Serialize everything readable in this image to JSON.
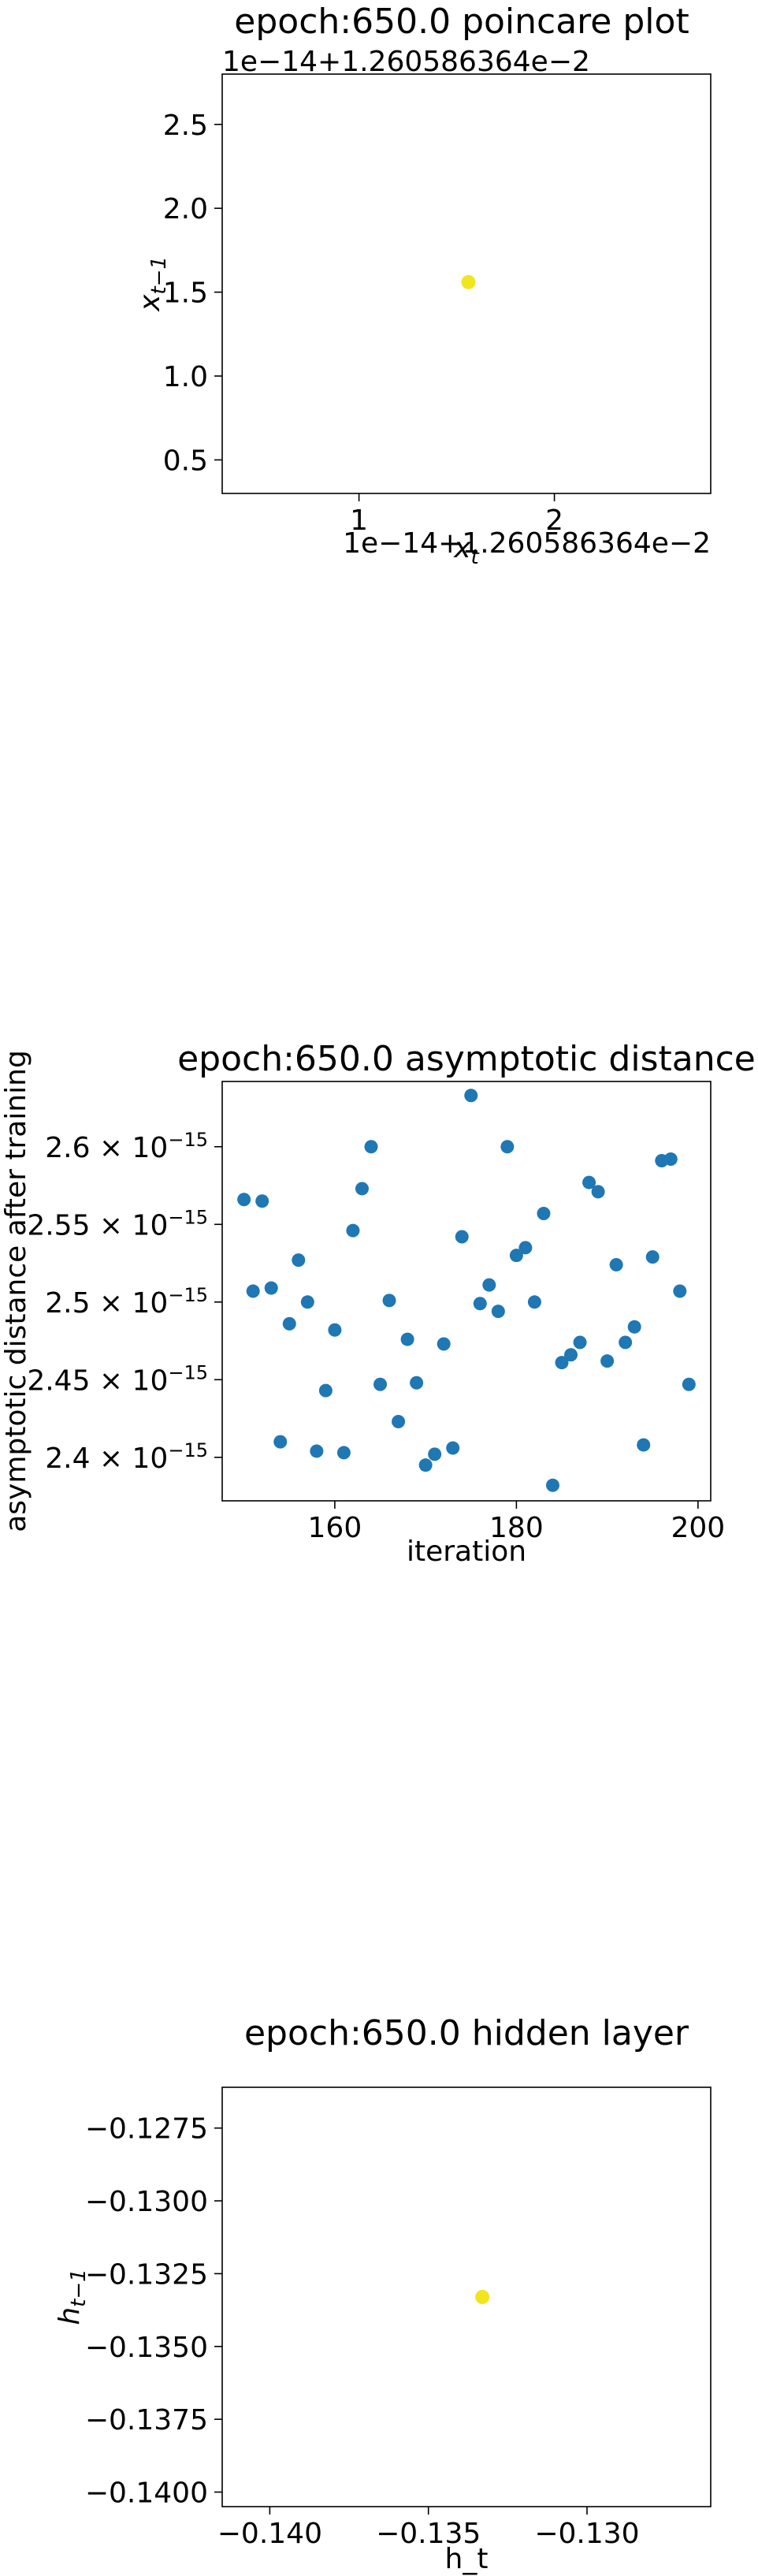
{
  "chart_data": [
    {
      "type": "scatter",
      "title": "epoch:650.0 poincare plot",
      "xlabel": "x_t",
      "ylabel": "x_{t-1}",
      "x_offset_label": "1e−14+1.260586364e−2",
      "y_offset_label": "1e−14+1.260586364e−2",
      "xlim": [
        0.3,
        2.8
      ],
      "ylim": [
        0.3,
        2.8
      ],
      "xticks": [
        1,
        2
      ],
      "xtick_labels": [
        "1",
        "2"
      ],
      "yticks": [
        0.5,
        1.0,
        1.5,
        2.0,
        2.5
      ],
      "ytick_labels": [
        "0.5",
        "1.0",
        "1.5",
        "2.0",
        "2.5"
      ],
      "points": [
        {
          "x": 1.56,
          "y": 1.56
        }
      ],
      "point_color": "#f1e51d",
      "grid": false
    },
    {
      "type": "scatter",
      "title": "epoch:650.0 asymptotic distance",
      "xlabel": "iteration",
      "ylabel": "asymptotic distance after training",
      "xlim": [
        147.6,
        201.4
      ],
      "ylim": [
        2.372,
        2.642
      ],
      "xticks": [
        160,
        180,
        200
      ],
      "xtick_labels": [
        "160",
        "180",
        "200"
      ],
      "yticks": [
        2.4,
        2.45,
        2.5,
        2.55,
        2.6
      ],
      "ytick_mantissas": [
        "2.4",
        "2.45",
        "2.5",
        "2.55",
        "2.6"
      ],
      "ytick_base": "10",
      "ytick_exponent": "−15",
      "point_color": "#1f77b4",
      "grid": false,
      "x": [
        150,
        151,
        152,
        153,
        154,
        155,
        156,
        157,
        158,
        159,
        160,
        161,
        162,
        163,
        164,
        165,
        166,
        167,
        168,
        169,
        170,
        171,
        172,
        173,
        174,
        175,
        176,
        177,
        178,
        179,
        180,
        181,
        182,
        183,
        184,
        185,
        186,
        187,
        188,
        189,
        190,
        191,
        192,
        193,
        194,
        195,
        196,
        197,
        198,
        199
      ],
      "y": [
        2.566,
        2.507,
        2.565,
        2.509,
        2.41,
        2.486,
        2.527,
        2.5,
        2.404,
        2.443,
        2.482,
        2.403,
        2.546,
        2.573,
        2.6,
        2.447,
        2.501,
        2.423,
        2.476,
        2.448,
        2.395,
        2.402,
        2.473,
        2.406,
        2.542,
        2.633,
        2.499,
        2.511,
        2.494,
        2.6,
        2.53,
        2.535,
        2.5,
        2.557,
        2.382,
        2.461,
        2.466,
        2.474,
        2.577,
        2.571,
        2.462,
        2.524,
        2.474,
        2.484,
        2.408,
        2.529,
        2.591,
        2.592,
        2.507,
        2.447
      ]
    },
    {
      "type": "scatter",
      "title": "epoch:650.0 hidden layer",
      "xlabel": "h_t",
      "ylabel": "h_{t-1}",
      "xlim": [
        -0.1415,
        -0.1261
      ],
      "ylim": [
        -0.1405,
        -0.1261
      ],
      "xticks": [
        -0.14,
        -0.135,
        -0.13
      ],
      "xtick_labels": [
        "−0.140",
        "−0.135",
        "−0.130"
      ],
      "yticks": [
        -0.14,
        -0.1375,
        -0.135,
        -0.1325,
        -0.13,
        -0.1275
      ],
      "ytick_labels": [
        "−0.1400",
        "−0.1375",
        "−0.1350",
        "−0.1325",
        "−0.1300",
        "−0.1275"
      ],
      "points": [
        {
          "x": -0.1333,
          "y": -0.1333
        }
      ],
      "point_color": "#f1e51d",
      "grid": false
    }
  ]
}
